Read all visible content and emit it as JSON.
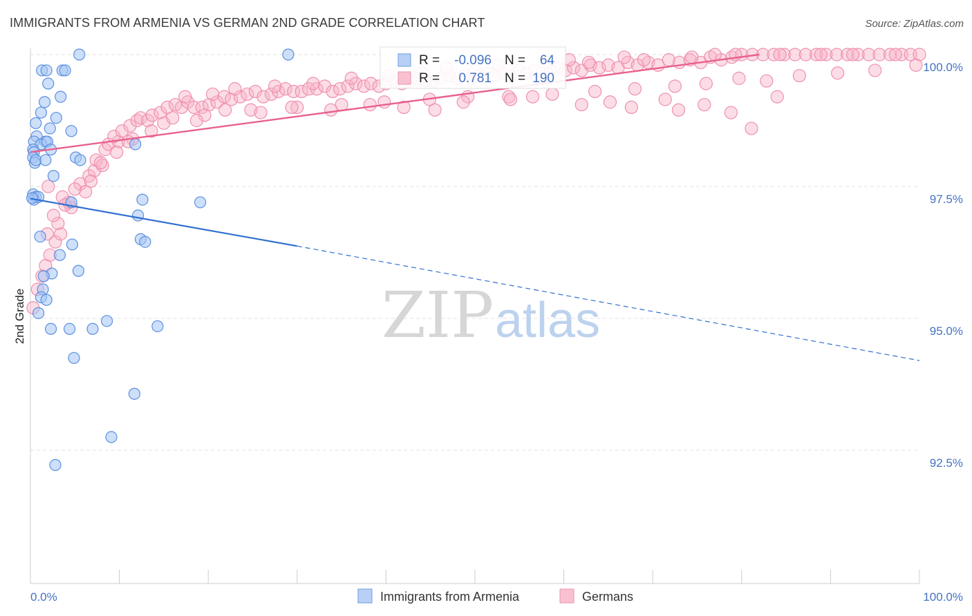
{
  "title": "IMMIGRANTS FROM ARMENIA VS GERMAN 2ND GRADE CORRELATION CHART",
  "source": "Source: ZipAtlas.com",
  "watermark": {
    "zip": "ZIP",
    "atlas": "atlas"
  },
  "legend": {
    "r_label": "R =",
    "n_label": "N =",
    "entries": [
      {
        "name": "Immigrants from Armenia",
        "r": "-0.096",
        "n": "64",
        "fill": "#b8d0f5",
        "stroke": "#6d9be0"
      },
      {
        "name": "Germans",
        "r": "0.781",
        "n": "190",
        "fill": "#f9c0d0",
        "stroke": "#e896b0"
      }
    ]
  },
  "colors": {
    "blue_point_fill": "rgba(164,196,244,0.55)",
    "blue_point_stroke": "#5b8fe0",
    "pink_point_fill": "rgba(248,180,200,0.45)",
    "pink_point_stroke": "#ee8fae",
    "blue_line": "#2f6fd0",
    "pink_line": "#e8608c",
    "grid": "#e0e0e0",
    "tick_text": "#4472c4"
  },
  "chart_data": {
    "type": "scatter",
    "title": "IMMIGRANTS FROM ARMENIA VS GERMAN 2ND GRADE CORRELATION CHART",
    "xlabel": "",
    "ylabel": "2nd Grade",
    "xlim": [
      0,
      100
    ],
    "ylim": [
      90.5,
      100.2
    ],
    "x_ticks": [
      "0.0%",
      "100.0%"
    ],
    "y_ticks": [
      {
        "value": 100.0,
        "label": "100.0%"
      },
      {
        "value": 97.5,
        "label": "97.5%"
      },
      {
        "value": 95.0,
        "label": "95.0%"
      },
      {
        "value": 92.5,
        "label": "92.5%"
      }
    ],
    "grid": true,
    "legend_position": "top-center",
    "series": [
      {
        "name": "Immigrants from Armenia",
        "r": -0.096,
        "n": 64,
        "trend": {
          "x0": 0,
          "y0": 97.27,
          "x1": 30,
          "y1": 96.37,
          "dash_to_x": 100,
          "dash_to_y": 94.2
        },
        "points": [
          [
            5.5,
            100.0
          ],
          [
            29,
            100.0
          ],
          [
            3.6,
            99.7
          ],
          [
            3.9,
            99.7
          ],
          [
            1.3,
            99.7
          ],
          [
            1.8,
            99.7
          ],
          [
            2.0,
            99.45
          ],
          [
            3.4,
            99.2
          ],
          [
            1.6,
            99.1
          ],
          [
            1.2,
            98.9
          ],
          [
            2.9,
            98.8
          ],
          [
            0.6,
            98.7
          ],
          [
            2.2,
            98.6
          ],
          [
            4.6,
            98.55
          ],
          [
            0.7,
            98.45
          ],
          [
            0.4,
            98.35
          ],
          [
            1.7,
            98.35
          ],
          [
            1.2,
            98.3
          ],
          [
            1.9,
            98.35
          ],
          [
            11.8,
            98.3
          ],
          [
            0.3,
            98.2
          ],
          [
            0.4,
            98.15
          ],
          [
            2.3,
            98.2
          ],
          [
            5.1,
            98.05
          ],
          [
            0.3,
            98.05
          ],
          [
            0.5,
            97.95
          ],
          [
            0.6,
            98.0
          ],
          [
            1.7,
            98.0
          ],
          [
            5.6,
            98.0
          ],
          [
            2.6,
            97.7
          ],
          [
            0.3,
            97.35
          ],
          [
            0.6,
            97.3
          ],
          [
            0.4,
            97.25
          ],
          [
            0.9,
            97.3
          ],
          [
            12.6,
            97.25
          ],
          [
            19.1,
            97.2
          ],
          [
            4.6,
            97.2
          ],
          [
            12.1,
            96.95
          ],
          [
            1.1,
            96.55
          ],
          [
            12.4,
            96.5
          ],
          [
            12.9,
            96.45
          ],
          [
            4.7,
            96.4
          ],
          [
            3.3,
            96.2
          ],
          [
            2.4,
            95.85
          ],
          [
            5.4,
            95.9
          ],
          [
            1.5,
            95.8
          ],
          [
            1.4,
            95.55
          ],
          [
            1.2,
            95.4
          ],
          [
            1.8,
            95.35
          ],
          [
            0.9,
            95.1
          ],
          [
            8.6,
            94.95
          ],
          [
            2.3,
            94.8
          ],
          [
            4.4,
            94.8
          ],
          [
            7.0,
            94.8
          ],
          [
            14.3,
            94.85
          ],
          [
            4.9,
            94.25
          ],
          [
            11.7,
            93.57
          ],
          [
            9.1,
            92.75
          ],
          [
            2.8,
            92.22
          ],
          [
            0.2,
            97.28
          ]
        ]
      },
      {
        "name": "Germans",
        "r": 0.781,
        "n": 190,
        "trend": {
          "x0": 0,
          "y0": 98.15,
          "x1": 82,
          "y1": 100.0
        },
        "points": [
          [
            0.3,
            95.2
          ],
          [
            0.8,
            95.55
          ],
          [
            1.3,
            95.8
          ],
          [
            1.7,
            96.0
          ],
          [
            2.2,
            96.2
          ],
          [
            2.8,
            96.45
          ],
          [
            3.4,
            96.6
          ],
          [
            3.1,
            96.8
          ],
          [
            4.6,
            97.1
          ],
          [
            4.3,
            97.2
          ],
          [
            5.6,
            97.55
          ],
          [
            6.6,
            97.7
          ],
          [
            7.2,
            97.8
          ],
          [
            7.4,
            98.0
          ],
          [
            8.4,
            98.2
          ],
          [
            8.8,
            98.3
          ],
          [
            9.9,
            98.35
          ],
          [
            9.4,
            98.45
          ],
          [
            10.3,
            98.55
          ],
          [
            11.2,
            98.65
          ],
          [
            12.0,
            98.75
          ],
          [
            12.4,
            98.8
          ],
          [
            13.2,
            98.75
          ],
          [
            13.7,
            98.85
          ],
          [
            14.6,
            98.9
          ],
          [
            15.4,
            99.0
          ],
          [
            16.3,
            99.05
          ],
          [
            17.0,
            99.0
          ],
          [
            17.7,
            99.1
          ],
          [
            18.4,
            99.0
          ],
          [
            19.3,
            99.0
          ],
          [
            20.1,
            99.05
          ],
          [
            21.0,
            99.1
          ],
          [
            21.8,
            99.2
          ],
          [
            22.6,
            99.15
          ],
          [
            23.6,
            99.2
          ],
          [
            24.4,
            99.25
          ],
          [
            25.3,
            99.3
          ],
          [
            26.2,
            99.2
          ],
          [
            27.1,
            99.25
          ],
          [
            27.9,
            99.3
          ],
          [
            28.7,
            99.35
          ],
          [
            29.6,
            99.3
          ],
          [
            30.5,
            99.3
          ],
          [
            31.3,
            99.35
          ],
          [
            32.2,
            99.35
          ],
          [
            33.1,
            99.4
          ],
          [
            34.0,
            99.3
          ],
          [
            34.8,
            99.35
          ],
          [
            35.7,
            99.4
          ],
          [
            36.6,
            99.45
          ],
          [
            37.5,
            99.4
          ],
          [
            38.3,
            99.45
          ],
          [
            39.2,
            99.4
          ],
          [
            40.0,
            99.45
          ],
          [
            41.0,
            99.5
          ],
          [
            41.8,
            99.45
          ],
          [
            42.7,
            99.5
          ],
          [
            43.5,
            99.55
          ],
          [
            44.5,
            99.5
          ],
          [
            45.3,
            99.5
          ],
          [
            46.2,
            99.55
          ],
          [
            47.1,
            99.6
          ],
          [
            48.0,
            99.55
          ],
          [
            48.8,
            99.6
          ],
          [
            49.7,
            99.55
          ],
          [
            50.5,
            99.6
          ],
          [
            51.4,
            99.65
          ],
          [
            52.3,
            99.6
          ],
          [
            53.2,
            99.65
          ],
          [
            54.0,
            99.6
          ],
          [
            55.0,
            99.7
          ],
          [
            55.8,
            99.65
          ],
          [
            56.7,
            99.7
          ],
          [
            57.6,
            99.65
          ],
          [
            58.5,
            99.7
          ],
          [
            59.3,
            99.75
          ],
          [
            60.2,
            99.7
          ],
          [
            61.1,
            99.75
          ],
          [
            62.0,
            99.7
          ],
          [
            63.0,
            99.8
          ],
          [
            64.0,
            99.75
          ],
          [
            65.0,
            99.8
          ],
          [
            66.1,
            99.75
          ],
          [
            67.2,
            99.85
          ],
          [
            68.3,
            99.8
          ],
          [
            69.5,
            99.85
          ],
          [
            70.6,
            99.8
          ],
          [
            71.8,
            99.9
          ],
          [
            73.0,
            99.85
          ],
          [
            74.2,
            99.9
          ],
          [
            75.4,
            99.85
          ],
          [
            76.5,
            99.95
          ],
          [
            77.7,
            99.9
          ],
          [
            78.9,
            99.95
          ],
          [
            80.0,
            100.0
          ],
          [
            81.2,
            100.0
          ],
          [
            82.4,
            100.0
          ],
          [
            83.6,
            100.0
          ],
          [
            84.8,
            100.0
          ],
          [
            86.0,
            100.0
          ],
          [
            87.2,
            100.0
          ],
          [
            88.4,
            100.0
          ],
          [
            89.5,
            100.0
          ],
          [
            90.7,
            100.0
          ],
          [
            91.9,
            100.0
          ],
          [
            93.1,
            100.0
          ],
          [
            94.3,
            100.0
          ],
          [
            95.5,
            100.0
          ],
          [
            96.7,
            100.0
          ],
          [
            98.0,
            100.0
          ],
          [
            99.0,
            100.0
          ],
          [
            100.0,
            100.0
          ],
          [
            2.0,
            97.5
          ],
          [
            3.6,
            97.3
          ],
          [
            6.2,
            97.4
          ],
          [
            8.1,
            97.9
          ],
          [
            11.5,
            98.4
          ],
          [
            15.0,
            98.7
          ],
          [
            19.6,
            98.85
          ],
          [
            24.8,
            98.95
          ],
          [
            30.0,
            99.0
          ],
          [
            35.0,
            99.05
          ],
          [
            39.8,
            99.1
          ],
          [
            44.9,
            99.15
          ],
          [
            49.2,
            99.2
          ],
          [
            53.8,
            99.2
          ],
          [
            58.7,
            99.25
          ],
          [
            63.5,
            99.3
          ],
          [
            68.0,
            99.35
          ],
          [
            72.5,
            99.4
          ],
          [
            76.0,
            99.45
          ],
          [
            79.7,
            99.55
          ],
          [
            82.8,
            99.5
          ],
          [
            86.5,
            99.6
          ],
          [
            90.8,
            99.65
          ],
          [
            95.0,
            99.7
          ],
          [
            71.4,
            99.15
          ],
          [
            72.9,
            98.95
          ],
          [
            75.8,
            99.05
          ],
          [
            78.8,
            98.9
          ],
          [
            81.1,
            98.6
          ],
          [
            84.0,
            99.2
          ],
          [
            67.6,
            99.0
          ],
          [
            65.2,
            99.1
          ],
          [
            62.0,
            99.05
          ],
          [
            56.5,
            99.2
          ],
          [
            54.0,
            99.15
          ],
          [
            48.7,
            99.1
          ],
          [
            45.5,
            98.95
          ],
          [
            42.0,
            99.0
          ],
          [
            38.2,
            99.05
          ],
          [
            33.8,
            98.95
          ],
          [
            29.4,
            99.0
          ],
          [
            25.9,
            98.9
          ],
          [
            21.9,
            98.95
          ],
          [
            18.7,
            98.75
          ],
          [
            16.0,
            98.8
          ],
          [
            13.6,
            98.55
          ],
          [
            11.0,
            98.35
          ],
          [
            9.7,
            98.15
          ],
          [
            7.9,
            97.95
          ],
          [
            6.8,
            97.6
          ],
          [
            5.0,
            97.45
          ],
          [
            3.9,
            97.15
          ],
          [
            2.6,
            96.95
          ],
          [
            1.9,
            96.6
          ],
          [
            58.0,
            99.85
          ],
          [
            60.6,
            99.9
          ],
          [
            62.8,
            99.85
          ],
          [
            66.8,
            99.95
          ],
          [
            69.0,
            99.9
          ],
          [
            74.4,
            99.95
          ],
          [
            77.0,
            100.0
          ],
          [
            79.3,
            100.0
          ],
          [
            84.3,
            100.0
          ],
          [
            88.9,
            100.0
          ],
          [
            92.5,
            100.0
          ],
          [
            97.3,
            100.0
          ],
          [
            99.6,
            99.8
          ],
          [
            50.0,
            99.7
          ],
          [
            46.8,
            99.75
          ],
          [
            52.6,
            99.8
          ],
          [
            44.0,
            99.65
          ],
          [
            40.3,
            99.6
          ],
          [
            36.1,
            99.55
          ],
          [
            31.8,
            99.45
          ],
          [
            27.5,
            99.4
          ],
          [
            23.0,
            99.35
          ],
          [
            20.5,
            99.25
          ],
          [
            17.4,
            99.2
          ]
        ]
      }
    ]
  }
}
